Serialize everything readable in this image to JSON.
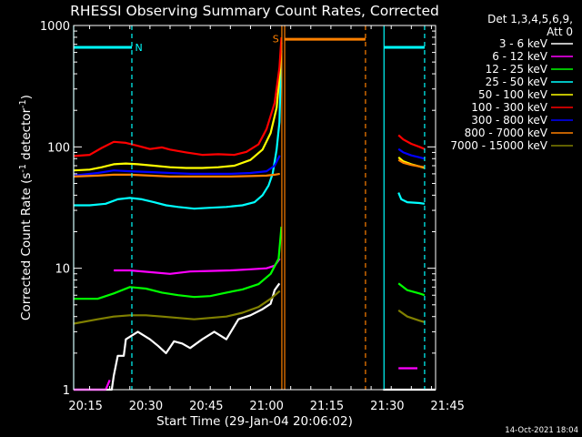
{
  "chart_data": {
    "type": "line",
    "title": "RHESSI Observing Summary Count Rates, Corrected",
    "xlabel": "Start Time (29-Jan-04 20:06:02)",
    "ylabel_prefix": "Corrected Count Rate (s",
    "ylabel_sup1": "-1",
    "ylabel_mid": " detector",
    "ylabel_sup2": "-1",
    "ylabel_suffix": ")",
    "y_scale": "log",
    "ylim": [
      1,
      1000
    ],
    "xlim_min": [
      6.03,
      96.03
    ],
    "x_ticks": [
      {
        "min": 9,
        "label": "20:15"
      },
      {
        "min": 24,
        "label": "20:30"
      },
      {
        "min": 39,
        "label": "20:45"
      },
      {
        "min": 54,
        "label": "21:00"
      },
      {
        "min": 69,
        "label": "21:15"
      },
      {
        "min": 84,
        "label": "21:30"
      },
      {
        "min": 99,
        "label": "21:45"
      }
    ],
    "x_minor_step_min": 5,
    "y_ticks": [
      {
        "v": 1,
        "label": "1"
      },
      {
        "v": 10,
        "label": "10"
      },
      {
        "v": 100,
        "label": "100"
      },
      {
        "v": 1000,
        "label": "1000"
      }
    ],
    "legend_header": [
      "Det 1,3,4,5,6,9,",
      "Att 0"
    ],
    "series": [
      {
        "name": "3 - 6 keV",
        "color": "#ffffff",
        "points": [
          [
            6.03,
            1
          ],
          [
            15.5,
            1
          ],
          [
            16,
            1.3
          ],
          [
            17,
            1.9
          ],
          [
            18.5,
            1.9
          ],
          [
            19,
            2.6
          ],
          [
            22,
            3
          ],
          [
            25,
            2.6
          ],
          [
            27,
            2.3
          ],
          [
            29,
            2
          ],
          [
            31,
            2.5
          ],
          [
            33,
            2.4
          ],
          [
            35,
            2.2
          ],
          [
            38,
            2.6
          ],
          [
            41,
            3
          ],
          [
            44,
            2.6
          ],
          [
            47,
            3.8
          ],
          [
            50,
            4.1
          ],
          [
            53,
            4.6
          ],
          [
            55,
            5.1
          ],
          [
            56,
            6.6
          ],
          [
            57.2,
            7.5
          ],
          [
            57.7,
            null
          ],
          [
            83,
            1
          ],
          [
            96.03,
            1
          ]
        ]
      },
      {
        "name": "6 - 12 keV",
        "color": "#ff00ff",
        "points": [
          [
            6.03,
            1
          ],
          [
            14,
            1
          ],
          [
            15,
            1.2
          ],
          [
            15.5,
            null
          ],
          [
            16,
            9.6
          ],
          [
            20,
            9.6
          ],
          [
            25,
            9.3
          ],
          [
            30,
            9
          ],
          [
            35,
            9.4
          ],
          [
            40,
            9.5
          ],
          [
            45,
            9.6
          ],
          [
            50,
            9.8
          ],
          [
            54,
            10
          ],
          [
            56,
            10.5
          ],
          [
            57.3,
            12
          ],
          [
            57.7,
            null
          ],
          [
            86.8,
            1.5
          ],
          [
            87.5,
            1.5
          ],
          [
            88,
            1.5
          ],
          [
            89.5,
            1.5
          ],
          [
            90,
            1.5
          ],
          [
            91.5,
            1.5
          ],
          [
            92,
            null
          ]
        ]
      },
      {
        "name": "12 - 25 keV",
        "color": "#00ff00",
        "points": [
          [
            6.03,
            5.6
          ],
          [
            12,
            5.6
          ],
          [
            16,
            6.2
          ],
          [
            20,
            7
          ],
          [
            24,
            6.8
          ],
          [
            28,
            6.3
          ],
          [
            32,
            6
          ],
          [
            36,
            5.8
          ],
          [
            40,
            5.9
          ],
          [
            44,
            6.3
          ],
          [
            48,
            6.7
          ],
          [
            52,
            7.4
          ],
          [
            55,
            9
          ],
          [
            57,
            12
          ],
          [
            57.7,
            22
          ],
          [
            58,
            null
          ],
          [
            86.8,
            7.5
          ],
          [
            89,
            6.6
          ],
          [
            92,
            6.2
          ],
          [
            93.3,
            6
          ]
        ]
      },
      {
        "name": "25 - 50 keV",
        "color": "#00ffff",
        "points": [
          [
            6.03,
            33
          ],
          [
            10,
            33
          ],
          [
            14,
            34
          ],
          [
            17,
            37
          ],
          [
            20,
            38
          ],
          [
            23,
            37
          ],
          [
            26,
            35
          ],
          [
            29,
            33
          ],
          [
            32,
            32
          ],
          [
            36,
            31
          ],
          [
            40,
            31.5
          ],
          [
            44,
            32
          ],
          [
            48,
            33
          ],
          [
            51,
            35
          ],
          [
            53,
            40
          ],
          [
            54.5,
            48
          ],
          [
            55.5,
            60
          ],
          [
            56.5,
            95
          ],
          [
            57.2,
            160
          ],
          [
            57.7,
            620
          ],
          [
            58,
            null
          ],
          [
            86.8,
            42
          ],
          [
            87.5,
            37
          ],
          [
            89,
            35
          ],
          [
            92,
            34.5
          ],
          [
            93.3,
            34
          ]
        ]
      },
      {
        "name": "50 - 100 keV",
        "color": "#ffff00",
        "points": [
          [
            6.03,
            64
          ],
          [
            10,
            65
          ],
          [
            13,
            68
          ],
          [
            16,
            72
          ],
          [
            19,
            73
          ],
          [
            22,
            72
          ],
          [
            26,
            70
          ],
          [
            30,
            68
          ],
          [
            34,
            67
          ],
          [
            38,
            67
          ],
          [
            42,
            68
          ],
          [
            46,
            70
          ],
          [
            50,
            78
          ],
          [
            53,
            95
          ],
          [
            55,
            130
          ],
          [
            56.5,
            210
          ],
          [
            57.3,
            400
          ],
          [
            57.7,
            720
          ],
          [
            58,
            null
          ],
          [
            86.8,
            82
          ],
          [
            88,
            76
          ],
          [
            90,
            72
          ],
          [
            92,
            69
          ],
          [
            93.3,
            67
          ]
        ]
      },
      {
        "name": "100 - 300 keV",
        "color": "#ff0000",
        "points": [
          [
            6.03,
            84
          ],
          [
            10,
            86
          ],
          [
            13,
            98
          ],
          [
            16,
            110
          ],
          [
            19,
            108
          ],
          [
            22,
            102
          ],
          [
            25,
            96
          ],
          [
            28,
            99
          ],
          [
            30,
            95
          ],
          [
            34,
            90
          ],
          [
            38,
            86
          ],
          [
            42,
            87
          ],
          [
            46,
            86
          ],
          [
            49,
            91
          ],
          [
            52,
            105
          ],
          [
            54,
            140
          ],
          [
            56,
            230
          ],
          [
            57.2,
            450
          ],
          [
            57.7,
            800
          ],
          [
            58,
            null
          ],
          [
            86.8,
            125
          ],
          [
            88,
            115
          ],
          [
            90,
            106
          ],
          [
            92,
            100
          ],
          [
            93.3,
            96
          ]
        ]
      },
      {
        "name": "300 - 800 keV",
        "color": "#0000ff",
        "points": [
          [
            6.03,
            58
          ],
          [
            12,
            61
          ],
          [
            16,
            64
          ],
          [
            20,
            63
          ],
          [
            25,
            62
          ],
          [
            30,
            61
          ],
          [
            35,
            60
          ],
          [
            40,
            60
          ],
          [
            45,
            60
          ],
          [
            50,
            61
          ],
          [
            54,
            63
          ],
          [
            56,
            70
          ],
          [
            57.3,
            85
          ],
          [
            57.7,
            null
          ],
          [
            86.8,
            96
          ],
          [
            88,
            90
          ],
          [
            90,
            85
          ],
          [
            92,
            82
          ],
          [
            93.3,
            80
          ]
        ]
      },
      {
        "name": "800 - 7000 keV",
        "color": "#ff8000",
        "points": [
          [
            6.03,
            57
          ],
          [
            12,
            58
          ],
          [
            16,
            59
          ],
          [
            20,
            59
          ],
          [
            25,
            58
          ],
          [
            30,
            57
          ],
          [
            35,
            57
          ],
          [
            40,
            57
          ],
          [
            45,
            57
          ],
          [
            50,
            57.5
          ],
          [
            54,
            58
          ],
          [
            56,
            59
          ],
          [
            57.3,
            60
          ],
          [
            57.7,
            null
          ],
          [
            86.8,
            78
          ],
          [
            88,
            74
          ],
          [
            90,
            71
          ],
          [
            92,
            69
          ],
          [
            93.3,
            68
          ]
        ]
      },
      {
        "name": "7000 - 15000 keV",
        "color": "#808000",
        "points": [
          [
            6.03,
            3.5
          ],
          [
            12,
            3.8
          ],
          [
            16,
            4
          ],
          [
            20,
            4.1
          ],
          [
            24,
            4.1
          ],
          [
            28,
            4
          ],
          [
            32,
            3.9
          ],
          [
            36,
            3.8
          ],
          [
            40,
            3.9
          ],
          [
            44,
            4
          ],
          [
            48,
            4.3
          ],
          [
            52,
            4.8
          ],
          [
            55,
            5.6
          ],
          [
            57.3,
            6.5
          ],
          [
            57.7,
            null
          ],
          [
            86.8,
            4.5
          ],
          [
            89,
            4
          ],
          [
            92,
            3.7
          ],
          [
            93.3,
            3.6
          ]
        ]
      }
    ],
    "annotations": [
      {
        "type": "bar",
        "color": "#00ffff",
        "x1": 6.03,
        "x2": 20.5,
        "y": 660
      },
      {
        "type": "bar",
        "color": "#00ffff",
        "x1": 83.2,
        "x2": 93.3,
        "y": 660
      },
      {
        "type": "bar",
        "color": "#ff8000",
        "x1": 58.5,
        "x2": 78.6,
        "y": 770
      },
      {
        "type": "vline",
        "color": "#00ffff",
        "x": 6.03,
        "dash": false
      },
      {
        "type": "vline",
        "color": "#00ffff",
        "x": 20.5,
        "dash": true
      },
      {
        "type": "vline",
        "color": "#00ffff",
        "x": 83.2,
        "dash": false
      },
      {
        "type": "vline",
        "color": "#00ffff",
        "x": 93.3,
        "dash": true
      },
      {
        "type": "vline",
        "color": "#ff8000",
        "x": 57.8,
        "dash": false
      },
      {
        "type": "vline",
        "color": "#ff8000",
        "x": 58.5,
        "dash": false
      },
      {
        "type": "vline",
        "color": "#ff8000",
        "x": 78.6,
        "dash": true
      },
      {
        "type": "label",
        "color": "#00ffff",
        "x": 21.3,
        "y": 660,
        "text": "N"
      },
      {
        "type": "label",
        "color": "#ff8000",
        "x": 55.5,
        "y": 780,
        "text": "S"
      }
    ],
    "footer_timestamp": "14-Oct-2021 18:04",
    "grid": false,
    "legend_position": "right"
  }
}
